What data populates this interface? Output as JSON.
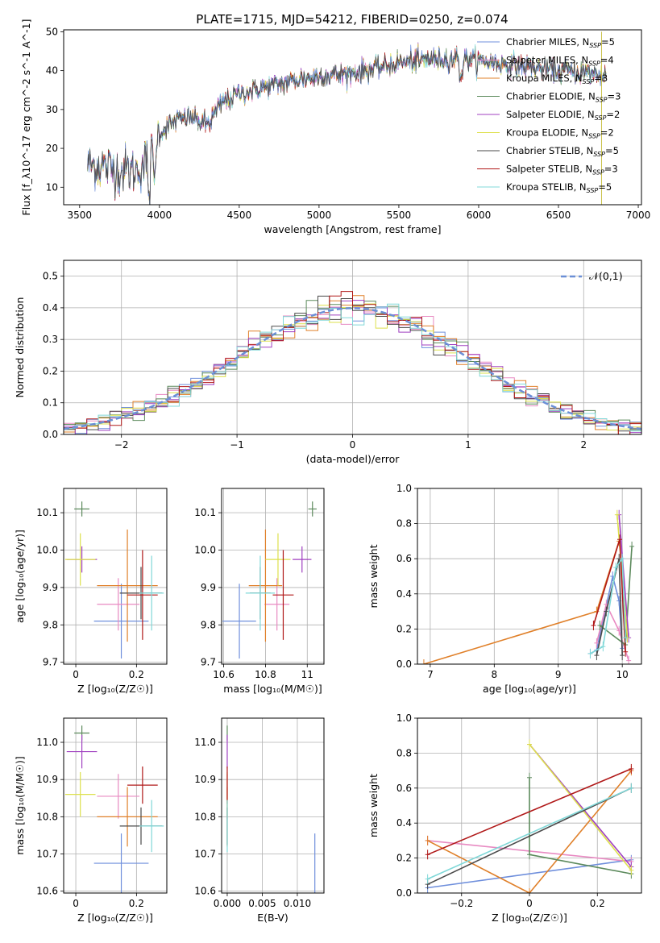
{
  "figure": {
    "title": "PLATE=1715, MJD=54212, FIBERID=0250, z=0.074"
  },
  "models": [
    {
      "name": "Chabrier MILES",
      "nssp": "5",
      "color": "#6f8fdc",
      "age": 9.81,
      "age_err": 0.1,
      "Z": 0.15,
      "Z_err": 0.09,
      "mass": 10.675,
      "mass_err": 0.08,
      "ebv": 0.0125
    },
    {
      "name": "Salpeter MILES",
      "nssp": "4",
      "color": "#e88ac2",
      "age": 9.855,
      "age_err": 0.07,
      "Z": 0.14,
      "Z_err": 0.07,
      "mass": 10.855,
      "mass_err": 0.06,
      "ebv": 0.0
    },
    {
      "name": "Kroupa MILES",
      "nssp": "3",
      "color": "#e0802a",
      "age": 9.905,
      "age_err": 0.15,
      "Z": 0.17,
      "Z_err": 0.1,
      "mass": 10.8,
      "mass_err": 0.08,
      "ebv": 0.0
    },
    {
      "name": "Chabrier ELODIE",
      "nssp": "3",
      "color": "#5c8a5c",
      "age": 10.11,
      "age_err": 0.02,
      "Z": 0.02,
      "Z_err": 0.025,
      "mass": 11.025,
      "mass_err": 0.02,
      "ebv": 0.0
    },
    {
      "name": "Salpeter ELODIE",
      "nssp": "2",
      "color": "#a040c0",
      "age": 9.975,
      "age_err": 0.035,
      "Z": 0.02,
      "Z_err": 0.05,
      "mass": 10.975,
      "mass_err": 0.045,
      "ebv": 0.0
    },
    {
      "name": "Kroupa ELODIE",
      "nssp": "2",
      "color": "#dde04c",
      "age": 9.975,
      "age_err": 0.07,
      "Z": 0.015,
      "Z_err": 0.05,
      "mass": 10.86,
      "mass_err": 0.06,
      "ebv": 0.0
    },
    {
      "name": "Chabrier STELIB",
      "nssp": "5",
      "color": "#4a4a4a",
      "age": 9.885,
      "age_err": 0.07,
      "Z": 0.215,
      "Z_err": 0.07,
      "mass": 10.775,
      "mass_err": 0.05,
      "ebv": 0.0
    },
    {
      "name": "Salpeter STELIB",
      "nssp": "3",
      "color": "#b01818",
      "age": 9.88,
      "age_err": 0.12,
      "Z": 0.22,
      "Z_err": 0.05,
      "mass": 10.885,
      "mass_err": 0.05,
      "ebv": 0.0
    },
    {
      "name": "Kroupa STELIB",
      "nssp": "5",
      "color": "#80d8d8",
      "age": 9.885,
      "age_err": 0.1,
      "Z": 0.25,
      "Z_err": 0.04,
      "mass": 10.775,
      "mass_err": 0.07,
      "ebv": 0.0
    }
  ],
  "chart_data": [
    {
      "id": "spectrum",
      "type": "line",
      "xlabel": "wavelength [Angstrom, rest frame]",
      "ylabel": "Flux [f_λ10^-17 erg cm^-2 s^-1 A^-1]",
      "xlim": [
        3400,
        7020
      ],
      "ylim": [
        5.5,
        50.5
      ],
      "xticks": [
        3500,
        4000,
        4500,
        5000,
        5500,
        6000,
        6500,
        7000
      ],
      "yticks": [
        10,
        20,
        30,
        40,
        50
      ],
      "grid": false,
      "legend_position": "top-right",
      "x_range": [
        3550,
        6800
      ],
      "continuum_nodes": [
        [
          3550,
          16
        ],
        [
          3700,
          15
        ],
        [
          3850,
          14
        ],
        [
          3950,
          18
        ],
        [
          4000,
          24
        ],
        [
          4100,
          27
        ],
        [
          4200,
          28
        ],
        [
          4300,
          26
        ],
        [
          4400,
          32
        ],
        [
          4500,
          34
        ],
        [
          4700,
          36
        ],
        [
          4900,
          38
        ],
        [
          5100,
          39
        ],
        [
          5300,
          40
        ],
        [
          5500,
          42
        ],
        [
          5700,
          43
        ],
        [
          5900,
          43
        ],
        [
          6100,
          42
        ],
        [
          6300,
          41
        ],
        [
          6500,
          40
        ],
        [
          6800,
          39
        ]
      ]
    },
    {
      "id": "residuals",
      "type": "line",
      "xlabel": "(data-model)/error",
      "ylabel": "Normed distribution",
      "xlim": [
        -2.5,
        2.5
      ],
      "ylim": [
        0,
        0.55
      ],
      "xticks": [
        -2,
        -1,
        0,
        1,
        2
      ],
      "yticks": [
        0.0,
        0.1,
        0.2,
        0.3,
        0.4,
        0.5
      ],
      "grid": true,
      "legend_position": "top-right",
      "reference": {
        "name": "𝒩(0,1)",
        "color": "#6b8fd6"
      },
      "bin_width": 0.1
    },
    {
      "id": "age-vs-Z",
      "type": "scatter",
      "xlabel": "Z [log₁₀(Z/Z☉)]",
      "ylabel": "age  [log₁₀(age/yr)]",
      "xlim": [
        -0.04,
        0.3
      ],
      "ylim": [
        9.695,
        10.165
      ],
      "xticks": [
        0.0,
        0.2
      ],
      "yticks": [
        9.7,
        9.8,
        9.9,
        10.0,
        10.1
      ],
      "grid": true
    },
    {
      "id": "age-vs-mass",
      "type": "scatter",
      "xlabel": "mass [log₁₀(M/M☉)]",
      "ylabel": "",
      "xlim": [
        10.59,
        11.08
      ],
      "ylim": [
        9.695,
        10.165
      ],
      "xticks": [
        10.6,
        10.8,
        11.0
      ],
      "yticks": [
        9.7,
        9.8,
        9.9,
        10.0,
        10.1
      ],
      "grid": true
    },
    {
      "id": "weight-vs-age",
      "type": "line",
      "xlabel": "age  [log₁₀(age/yr)]",
      "ylabel": "mass weight",
      "xlim": [
        6.8,
        10.3
      ],
      "ylim": [
        0,
        1
      ],
      "xticks": [
        7,
        8,
        9,
        10
      ],
      "yticks": [
        0.0,
        0.2,
        0.4,
        0.6,
        0.8,
        1.0
      ],
      "grid": true,
      "series": [
        {
          "model": 0,
          "points": [
            [
              9.5,
              0.06
            ],
            [
              9.6,
              0.08
            ],
            [
              9.85,
              0.5
            ],
            [
              9.95,
              0.36
            ],
            [
              10.0,
              0.09
            ]
          ]
        },
        {
          "model": 1,
          "points": [
            [
              9.6,
              0.12
            ],
            [
              9.75,
              0.34
            ],
            [
              9.95,
              0.19
            ],
            [
              10.1,
              0.02
            ]
          ]
        },
        {
          "model": 2,
          "points": [
            [
              6.9,
              0.0
            ],
            [
              9.6,
              0.3
            ],
            [
              9.95,
              0.7
            ]
          ]
        },
        {
          "model": 3,
          "points": [
            [
              9.65,
              0.22
            ],
            [
              10.05,
              0.11
            ],
            [
              10.15,
              0.67
            ]
          ]
        },
        {
          "model": 4,
          "points": [
            [
              9.95,
              0.85
            ],
            [
              10.1,
              0.15
            ]
          ]
        },
        {
          "model": 5,
          "points": [
            [
              9.92,
              0.85
            ],
            [
              10.08,
              0.15
            ]
          ]
        },
        {
          "model": 6,
          "points": [
            [
              9.6,
              0.05
            ],
            [
              9.75,
              0.3
            ],
            [
              9.95,
              0.6
            ],
            [
              10.0,
              0.05
            ]
          ]
        },
        {
          "model": 7,
          "points": [
            [
              9.55,
              0.22
            ],
            [
              9.96,
              0.71
            ],
            [
              10.05,
              0.07
            ]
          ]
        },
        {
          "model": 8,
          "points": [
            [
              9.5,
              0.06
            ],
            [
              9.7,
              0.1
            ],
            [
              9.9,
              0.55
            ],
            [
              10.0,
              0.6
            ],
            [
              10.05,
              0.15
            ]
          ]
        }
      ]
    },
    {
      "id": "mass-vs-Z",
      "type": "scatter",
      "xlabel": "Z [log₁₀(Z/Z☉)]",
      "ylabel": "mass [log₁₀(M/M☉)]",
      "xlim": [
        -0.04,
        0.3
      ],
      "ylim": [
        10.595,
        11.065
      ],
      "xticks": [
        0.0,
        0.2
      ],
      "yticks": [
        10.6,
        10.7,
        10.8,
        10.9,
        11.0
      ],
      "grid": true
    },
    {
      "id": "mass-vs-ebv",
      "type": "scatter",
      "xlabel": "E(B-V)",
      "ylabel": "",
      "xlim": [
        -0.0008,
        0.0138
      ],
      "ylim": [
        10.595,
        11.065
      ],
      "xticks": [
        0.0,
        0.005,
        0.01
      ],
      "xtick_labels": [
        "0.000",
        "0.005",
        "0.010"
      ],
      "yticks": [
        10.6,
        10.7,
        10.8,
        10.9,
        11.0
      ],
      "grid": true
    },
    {
      "id": "weight-vs-Z",
      "type": "line",
      "xlabel": "Z [log₁₀(Z/Z☉)]",
      "ylabel": "mass weight",
      "xlim": [
        -0.33,
        0.33
      ],
      "ylim": [
        0,
        1
      ],
      "xticks": [
        -0.2,
        0.0,
        0.2
      ],
      "yticks": [
        0.0,
        0.2,
        0.4,
        0.6,
        0.8,
        1.0
      ],
      "grid": true,
      "series": [
        {
          "model": 0,
          "points": [
            [
              -0.3,
              0.03
            ],
            [
              0.3,
              0.19
            ]
          ]
        },
        {
          "model": 1,
          "points": [
            [
              -0.3,
              0.3
            ],
            [
              0.3,
              0.18
            ]
          ]
        },
        {
          "model": 2,
          "points": [
            [
              -0.3,
              0.3
            ],
            [
              0.0,
              0.0
            ],
            [
              0.3,
              0.7
            ]
          ]
        },
        {
          "model": 3,
          "points": [
            [
              0.0,
              0.66
            ],
            [
              0.0,
              0.22
            ],
            [
              0.3,
              0.11
            ]
          ]
        },
        {
          "model": 4,
          "points": [
            [
              0.0,
              0.85
            ],
            [
              0.3,
              0.15
            ]
          ]
        },
        {
          "model": 5,
          "points": [
            [
              0.0,
              0.85
            ],
            [
              0.3,
              0.13
            ]
          ]
        },
        {
          "model": 6,
          "points": [
            [
              -0.3,
              0.05
            ],
            [
              0.3,
              0.6
            ]
          ]
        },
        {
          "model": 7,
          "points": [
            [
              -0.3,
              0.22
            ],
            [
              0.3,
              0.71
            ]
          ]
        },
        {
          "model": 8,
          "points": [
            [
              -0.3,
              0.08
            ],
            [
              0.3,
              0.6
            ]
          ]
        }
      ]
    }
  ]
}
